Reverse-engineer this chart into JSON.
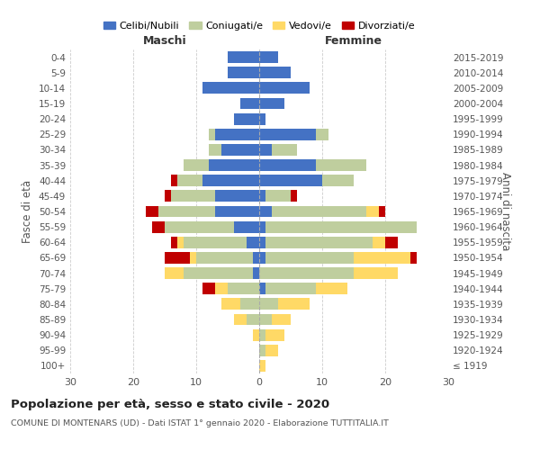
{
  "age_groups": [
    "100+",
    "95-99",
    "90-94",
    "85-89",
    "80-84",
    "75-79",
    "70-74",
    "65-69",
    "60-64",
    "55-59",
    "50-54",
    "45-49",
    "40-44",
    "35-39",
    "30-34",
    "25-29",
    "20-24",
    "15-19",
    "10-14",
    "5-9",
    "0-4"
  ],
  "birth_years": [
    "≤ 1919",
    "1920-1924",
    "1925-1929",
    "1930-1934",
    "1935-1939",
    "1940-1944",
    "1945-1949",
    "1950-1954",
    "1955-1959",
    "1960-1964",
    "1965-1969",
    "1970-1974",
    "1975-1979",
    "1980-1984",
    "1985-1989",
    "1990-1994",
    "1995-1999",
    "2000-2004",
    "2005-2009",
    "2010-2014",
    "2015-2019"
  ],
  "male": {
    "celibe": [
      0,
      0,
      0,
      0,
      0,
      0,
      1,
      1,
      2,
      4,
      7,
      7,
      9,
      8,
      6,
      7,
      4,
      3,
      9,
      5,
      5
    ],
    "coniugato": [
      0,
      0,
      0,
      2,
      3,
      5,
      11,
      9,
      10,
      11,
      9,
      7,
      4,
      4,
      2,
      1,
      0,
      0,
      0,
      0,
      0
    ],
    "vedovo": [
      0,
      0,
      1,
      2,
      3,
      2,
      3,
      1,
      1,
      0,
      0,
      0,
      0,
      0,
      0,
      0,
      0,
      0,
      0,
      0,
      0
    ],
    "divorziato": [
      0,
      0,
      0,
      0,
      0,
      2,
      0,
      4,
      1,
      2,
      2,
      1,
      1,
      0,
      0,
      0,
      0,
      0,
      0,
      0,
      0
    ]
  },
  "female": {
    "nubile": [
      0,
      0,
      0,
      0,
      0,
      1,
      0,
      1,
      1,
      1,
      2,
      1,
      10,
      9,
      2,
      9,
      1,
      4,
      8,
      5,
      3
    ],
    "coniugata": [
      0,
      1,
      1,
      2,
      3,
      8,
      15,
      14,
      17,
      24,
      15,
      4,
      5,
      8,
      4,
      2,
      0,
      0,
      0,
      0,
      0
    ],
    "vedova": [
      1,
      2,
      3,
      3,
      5,
      5,
      7,
      9,
      2,
      0,
      2,
      0,
      0,
      0,
      0,
      0,
      0,
      0,
      0,
      0,
      0
    ],
    "divorziata": [
      0,
      0,
      0,
      0,
      0,
      0,
      0,
      1,
      2,
      0,
      1,
      1,
      0,
      0,
      0,
      0,
      0,
      0,
      0,
      0,
      0
    ]
  },
  "colors": {
    "celibe_nubile": "#4472C4",
    "coniugato": "#BFCE9E",
    "vedovo": "#FFD966",
    "divorziato": "#C00000"
  },
  "title": "Popolazione per età, sesso e stato civile - 2020",
  "subtitle": "COMUNE DI MONTENARS (UD) - Dati ISTAT 1° gennaio 2020 - Elaborazione TUTTITALIA.IT",
  "xlabel_left": "Maschi",
  "xlabel_right": "Femmine",
  "ylabel_left": "Fasce di età",
  "ylabel_right": "Anni di nascita",
  "xlim": 30,
  "background_color": "#FFFFFF"
}
